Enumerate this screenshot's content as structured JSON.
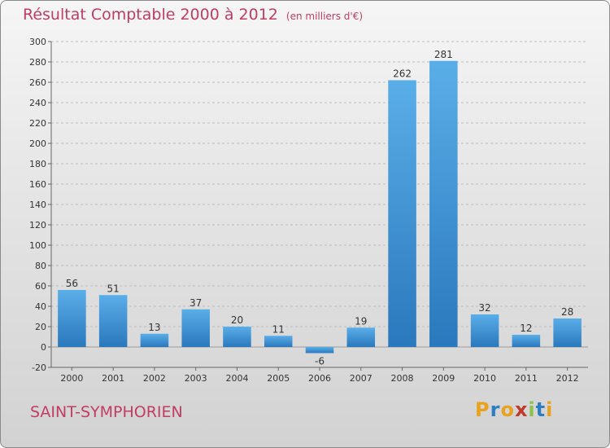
{
  "chart_data": {
    "type": "bar",
    "title": "Résultat Comptable 2000 à 2012",
    "unit": "(en milliers d'€)",
    "categories": [
      "2000",
      "2001",
      "2002",
      "2003",
      "2004",
      "2005",
      "2006",
      "2007",
      "2008",
      "2009",
      "2010",
      "2011",
      "2012"
    ],
    "values": [
      56,
      51,
      13,
      37,
      20,
      11,
      -6,
      19,
      262,
      281,
      32,
      12,
      28
    ],
    "ylim": [
      -20,
      300
    ],
    "yticks": [
      -20,
      0,
      20,
      40,
      60,
      80,
      100,
      120,
      140,
      160,
      180,
      200,
      220,
      240,
      260,
      280,
      300
    ],
    "grid": true,
    "bar_color": "#3a8fd4"
  },
  "footer": {
    "place": "SAINT-SYMPHORIEN",
    "logo_letters": [
      "P",
      "r",
      "o",
      "x",
      "i",
      "t",
      "i"
    ],
    "logo_colors": [
      "#e8a21e",
      "#2e7dc2",
      "#e8a21e",
      "#c0392b",
      "#8bc34a",
      "#2e7dc2",
      "#e8a21e"
    ]
  }
}
